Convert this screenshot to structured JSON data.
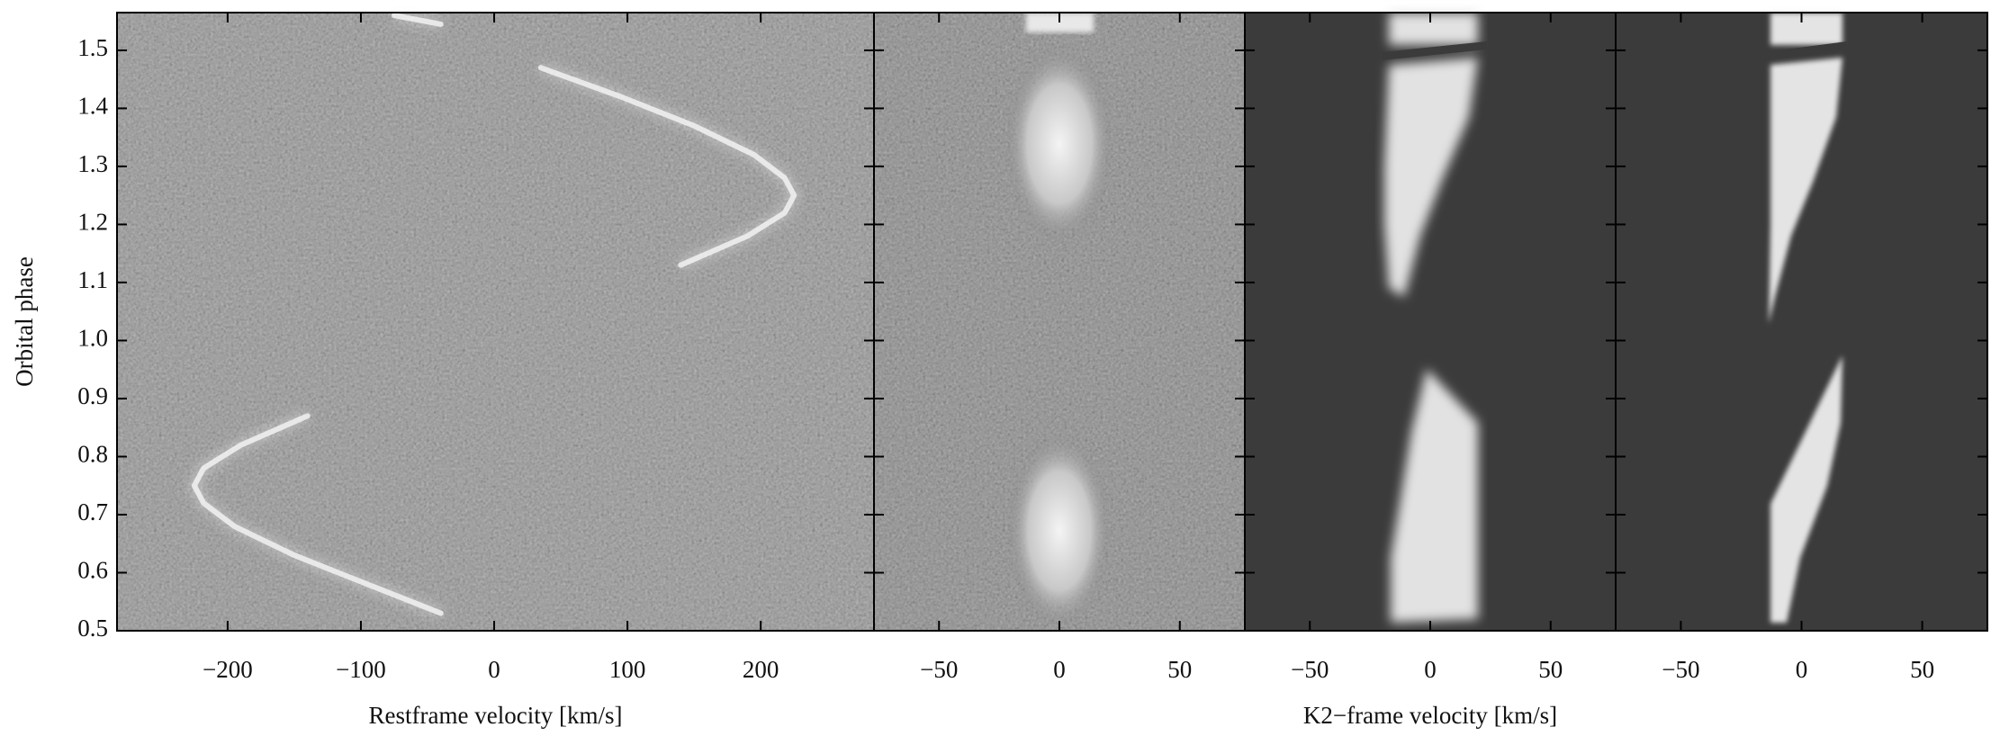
{
  "chart_data": [
    {
      "type": "image",
      "xlabel": "Restframe velocity [km/s]",
      "ylabel": "Orbital phase",
      "xlim": [
        -283,
        285
      ],
      "ylim": [
        0.5,
        1.565
      ],
      "xticks": [
        {
          "value": -200,
          "label": "−200"
        },
        {
          "value": -100,
          "label": "−100"
        },
        0,
        100,
        200
      ],
      "yticks": [
        0.5,
        0.6,
        0.7,
        0.8,
        0.9,
        {
          "value": 1,
          "label": "1.0"
        },
        1.1,
        1.2,
        1.3,
        1.4,
        1.5
      ],
      "series": [
        {
          "color": "#f2f2f2",
          "x": [
            -40,
            -95,
            -150,
            -195,
            -218,
            -225,
            -218,
            -190,
            -140,
            null,
            140,
            190,
            218,
            225,
            218,
            195,
            150,
            95,
            35,
            null,
            -75,
            -40
          ],
          "values": [
            0.53,
            0.58,
            0.63,
            0.68,
            0.72,
            0.75,
            0.78,
            0.82,
            0.87,
            null,
            1.13,
            1.18,
            1.22,
            1.25,
            1.28,
            1.32,
            1.37,
            1.42,
            1.47,
            null,
            1.56,
            1.545
          ]
        }
      ]
    },
    {
      "type": "image",
      "xlim": [
        -77,
        77
      ],
      "ylim": [
        0.5,
        1.565
      ],
      "xticks": [
        {
          "value": -50,
          "label": "−50"
        },
        0,
        50
      ],
      "yticks": [
        0.5,
        0.6,
        0.7,
        0.8,
        0.9,
        1,
        1.1,
        1.2,
        1.3,
        1.4,
        1.5
      ]
    },
    {
      "type": "image",
      "xlabel": "K2−frame velocity [km/s]",
      "xlim": [
        -77,
        77
      ],
      "ylim": [
        0.5,
        1.565
      ],
      "xticks": [
        {
          "value": -50,
          "label": "−50"
        },
        0,
        50
      ],
      "yticks": [
        0.5,
        0.6,
        0.7,
        0.8,
        0.9,
        1,
        1.1,
        1.2,
        1.3,
        1.4,
        1.5
      ]
    },
    {
      "type": "image",
      "xlim": [
        -77,
        77
      ],
      "ylim": [
        0.5,
        1.565
      ],
      "xticks": [
        {
          "value": -50,
          "label": "−50"
        },
        0,
        50
      ],
      "yticks": [
        0.5,
        0.6,
        0.7,
        0.8,
        0.9,
        1,
        1.1,
        1.2,
        1.3,
        1.4,
        1.5
      ]
    }
  ]
}
